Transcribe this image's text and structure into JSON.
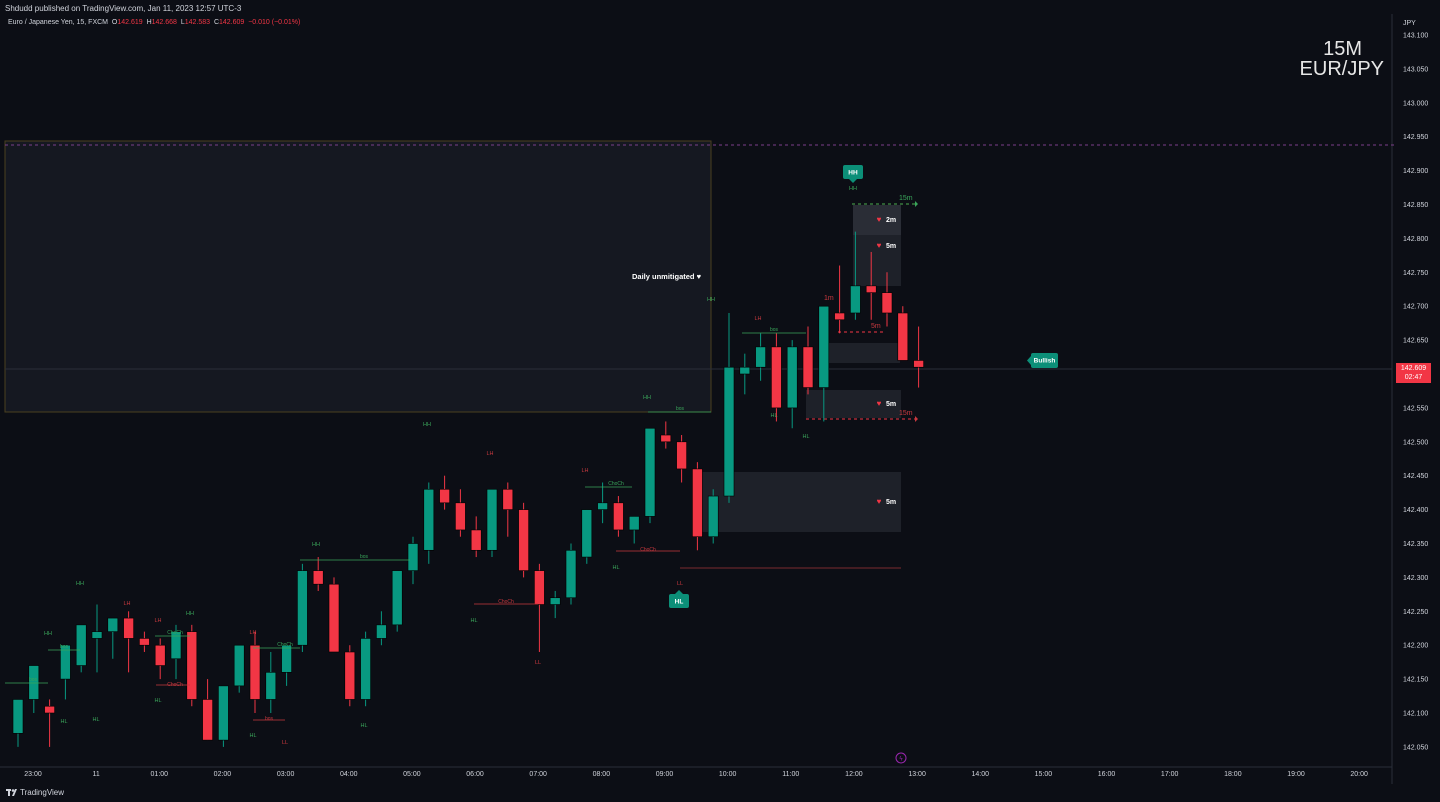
{
  "header": {
    "published": "Shdudd published on TradingView.com, Jan 11, 2023 12:57 UTC-3"
  },
  "legend": {
    "symbol": "Euro / Japanese Yen, 15, FXCM",
    "o_label": "O",
    "o_value": "142.619",
    "h_label": "H",
    "h_value": "142.668",
    "l_label": "L",
    "l_value": "142.583",
    "c_label": "C",
    "c_value": "142.609",
    "change": "−0.010 (−0.01%)"
  },
  "watermark": {
    "timeframe": "15M",
    "symbol": "EUR/JPY"
  },
  "axis": {
    "currency": "JPY"
  },
  "last_price": {
    "price": "142.609",
    "countdown": "02:47"
  },
  "footer": {
    "brand": "TradingView"
  },
  "colors": {
    "up": "#089981",
    "down": "#f23645",
    "bg": "#0c0e15",
    "grid": "#1a1d26"
  },
  "chart_data": {
    "type": "candlestick",
    "y_ticks": [
      "143.100",
      "143.050",
      "143.000",
      "142.950",
      "142.900",
      "142.850",
      "142.800",
      "142.750",
      "142.700",
      "142.650",
      "142.600",
      "142.550",
      "142.500",
      "142.450",
      "142.400",
      "142.350",
      "142.300",
      "142.250",
      "142.200",
      "142.150",
      "142.100",
      "142.050"
    ],
    "y_tick_values": [
      143.1,
      143.05,
      143.0,
      142.95,
      142.9,
      142.85,
      142.8,
      142.75,
      142.7,
      142.65,
      142.6,
      142.55,
      142.5,
      142.45,
      142.4,
      142.35,
      142.3,
      142.25,
      142.2,
      142.15,
      142.1,
      142.05
    ],
    "ylim": [
      142.03,
      143.12
    ],
    "x_ticks": [
      "23:00",
      "11",
      "01:00",
      "02:00",
      "03:00",
      "04:00",
      "05:00",
      "06:00",
      "07:00",
      "08:00",
      "09:00",
      "10:00",
      "11:00",
      "12:00",
      "13:00",
      "14:00",
      "15:00",
      "16:00",
      "17:00",
      "18:00",
      "19:00",
      "20:00"
    ],
    "candles": [
      [
        142.07,
        142.12,
        142.05,
        142.12
      ],
      [
        142.12,
        142.17,
        142.1,
        142.17
      ],
      [
        142.11,
        142.12,
        142.05,
        142.1
      ],
      [
        142.15,
        142.2,
        142.12,
        142.2
      ],
      [
        142.17,
        142.23,
        142.16,
        142.23
      ],
      [
        142.21,
        142.26,
        142.16,
        142.22
      ],
      [
        142.22,
        142.24,
        142.18,
        142.24
      ],
      [
        142.24,
        142.25,
        142.16,
        142.21
      ],
      [
        142.21,
        142.22,
        142.19,
        142.2
      ],
      [
        142.2,
        142.21,
        142.15,
        142.17
      ],
      [
        142.18,
        142.23,
        142.15,
        142.22
      ],
      [
        142.22,
        142.23,
        142.11,
        142.12
      ],
      [
        142.12,
        142.15,
        142.06,
        142.06
      ],
      [
        142.06,
        142.14,
        142.05,
        142.14
      ],
      [
        142.14,
        142.2,
        142.13,
        142.2
      ],
      [
        142.2,
        142.22,
        142.1,
        142.12
      ],
      [
        142.12,
        142.19,
        142.1,
        142.16
      ],
      [
        142.16,
        142.2,
        142.14,
        142.2
      ],
      [
        142.2,
        142.32,
        142.19,
        142.31
      ],
      [
        142.31,
        142.33,
        142.28,
        142.29
      ],
      [
        142.29,
        142.3,
        142.19,
        142.19
      ],
      [
        142.19,
        142.2,
        142.11,
        142.12
      ],
      [
        142.12,
        142.22,
        142.11,
        142.21
      ],
      [
        142.21,
        142.25,
        142.2,
        142.23
      ],
      [
        142.23,
        142.31,
        142.22,
        142.31
      ],
      [
        142.31,
        142.36,
        142.29,
        142.35
      ],
      [
        142.34,
        142.44,
        142.32,
        142.43
      ],
      [
        142.43,
        142.45,
        142.4,
        142.41
      ],
      [
        142.41,
        142.43,
        142.36,
        142.37
      ],
      [
        142.37,
        142.39,
        142.33,
        142.34
      ],
      [
        142.34,
        142.43,
        142.33,
        142.43
      ],
      [
        142.43,
        142.44,
        142.36,
        142.4
      ],
      [
        142.4,
        142.41,
        142.3,
        142.31
      ],
      [
        142.31,
        142.32,
        142.19,
        142.26
      ],
      [
        142.26,
        142.28,
        142.24,
        142.27
      ],
      [
        142.27,
        142.35,
        142.26,
        142.34
      ],
      [
        142.33,
        142.4,
        142.32,
        142.4
      ],
      [
        142.4,
        142.44,
        142.38,
        142.41
      ],
      [
        142.41,
        142.42,
        142.36,
        142.37
      ],
      [
        142.37,
        142.39,
        142.35,
        142.39
      ],
      [
        142.39,
        142.52,
        142.38,
        142.52
      ],
      [
        142.51,
        142.53,
        142.49,
        142.5
      ],
      [
        142.5,
        142.51,
        142.44,
        142.46
      ],
      [
        142.46,
        142.47,
        142.34,
        142.36
      ],
      [
        142.36,
        142.43,
        142.35,
        142.42
      ],
      [
        142.42,
        142.69,
        142.41,
        142.61
      ],
      [
        142.6,
        142.63,
        142.57,
        142.61
      ],
      [
        142.61,
        142.66,
        142.59,
        142.64
      ],
      [
        142.64,
        142.66,
        142.53,
        142.55
      ],
      [
        142.55,
        142.65,
        142.52,
        142.64
      ],
      [
        142.64,
        142.67,
        142.57,
        142.58
      ],
      [
        142.58,
        142.7,
        142.53,
        142.7
      ],
      [
        142.69,
        142.76,
        142.66,
        142.68
      ],
      [
        142.69,
        142.81,
        142.68,
        142.73
      ],
      [
        142.73,
        142.78,
        142.68,
        142.72
      ],
      [
        142.72,
        142.75,
        142.67,
        142.69
      ],
      [
        142.69,
        142.7,
        142.62,
        142.62
      ],
      [
        142.62,
        142.67,
        142.58,
        142.61
      ]
    ],
    "annotations": [
      {
        "text": "Daily unmitigated ♥"
      },
      {
        "text": "HH"
      },
      {
        "text": "HL"
      },
      {
        "text": "Bullish"
      },
      {
        "text": "2m"
      },
      {
        "text": "5m"
      },
      {
        "text": "5m"
      },
      {
        "text": "5m"
      },
      {
        "text": "15m"
      },
      {
        "text": "15m"
      },
      {
        "text": "1m"
      },
      {
        "text": "5m"
      },
      {
        "text": "HH"
      },
      {
        "text": "HL"
      },
      {
        "text": "LH"
      },
      {
        "text": "LL"
      },
      {
        "text": "bos"
      },
      {
        "text": "ChoCh"
      }
    ]
  }
}
